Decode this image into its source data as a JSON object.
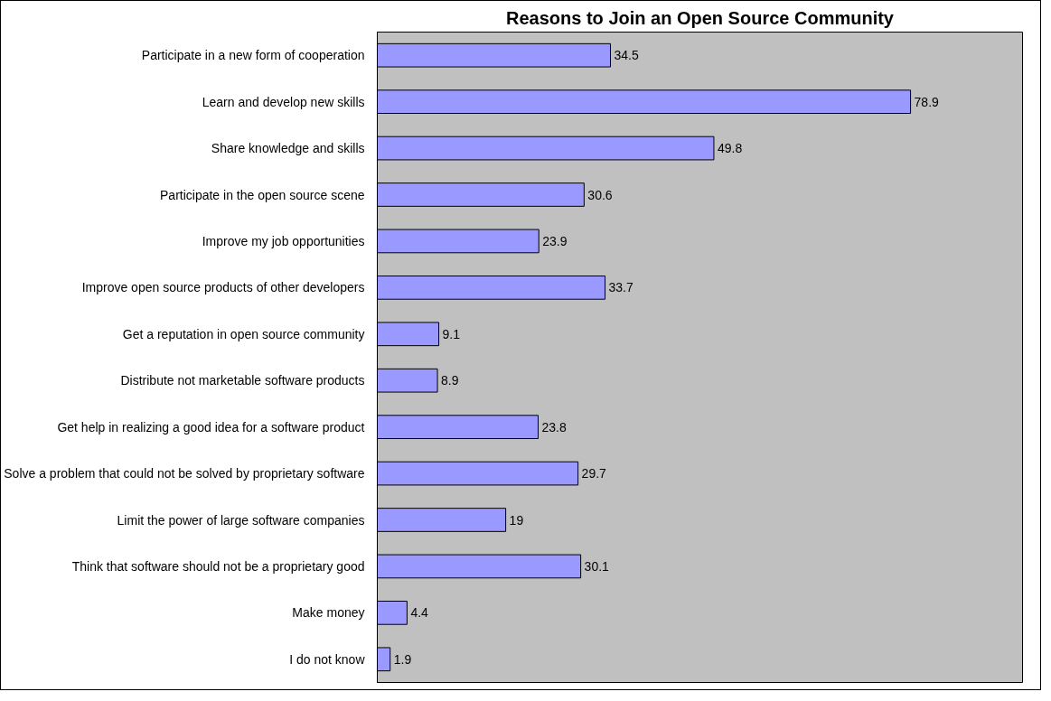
{
  "chart_data": {
    "type": "bar",
    "orientation": "horizontal",
    "title": "Reasons to Join an Open Source Community",
    "categories": [
      "Participate in a new form of cooperation",
      "Learn and develop new skills",
      "Share knowledge and skills",
      "Participate in the open source scene",
      "Improve my job opportunities",
      "Improve open source products of other developers",
      "Get a reputation in open source community",
      "Distribute not marketable software products",
      "Get help in realizing a good idea for a software product",
      "Solve a problem that could not be solved by proprietary software",
      "Limit the power of large software companies",
      "Think that software should not be a proprietary good",
      "Make money",
      "I do not know"
    ],
    "values": [
      34.5,
      78.9,
      49.8,
      30.6,
      23.9,
      33.7,
      9.1,
      8.9,
      23.8,
      29.7,
      19,
      30.1,
      4.4,
      1.9
    ],
    "color": "#9999ff",
    "data_labels": true,
    "grid": false
  }
}
